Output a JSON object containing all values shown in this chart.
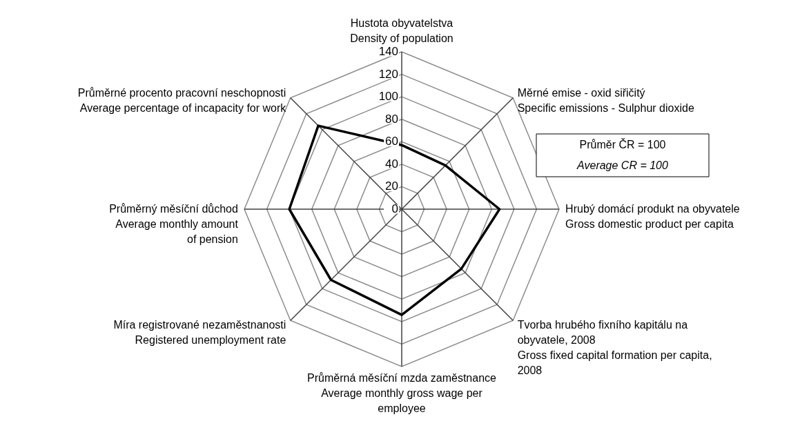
{
  "chart_data": {
    "type": "radar",
    "categories": [
      "Hustota obyvatelstva\nDensity of population",
      "Měrné emise - oxid siřičitý\nSpecific emissions  - Sulphur dioxide",
      "Hrubý domácí produkt na obyvatele\nGross domestic product per capita",
      "Tvorba hrubého fixního kapitálu na\nobyvatele, 2008\nGross fixed capital formation per capita,\n2008",
      "Průměrná měsíční mzda zaměstnance\nAverage monthly gross wage per\nemployee",
      "Míra registrované nezaměstnanosti\nRegistered unemployment rate",
      "Průměrný měsíční důchod\nAverage monthly amount\nof pension",
      "Průměrné procento pracovní neschopnosti\n\nAverage percentage of incapacity for work"
    ],
    "series": [
      {
        "color": "#000000",
        "values": [
          57,
          55,
          87,
          75,
          94,
          89,
          100,
          105
        ]
      }
    ],
    "ylim": [
      0,
      140
    ],
    "yticks": [
      0,
      20,
      40,
      60,
      80,
      100,
      120,
      140
    ],
    "grid": true,
    "line_style": "solid",
    "annotations": [
      "Průměr  ČR = 100",
      "Average CR = 100"
    ]
  }
}
